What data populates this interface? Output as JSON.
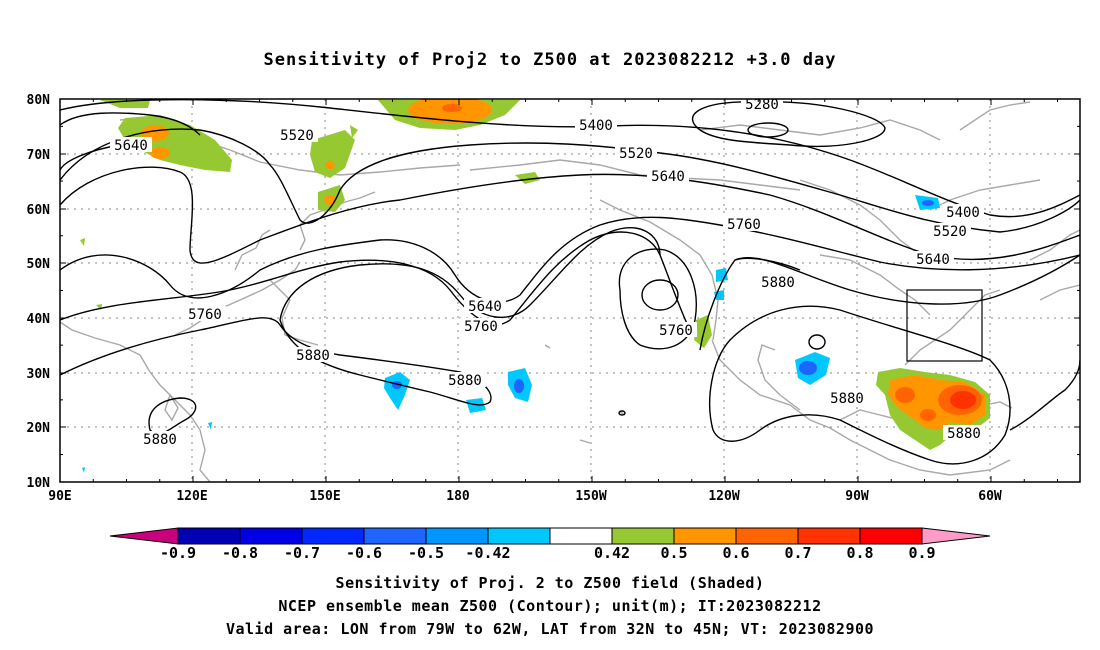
{
  "title": "Sensitivity of Proj2 to Z500 at 2023082212 +3.0 day",
  "lat_labels": [
    "80N",
    "70N",
    "60N",
    "50N",
    "40N",
    "30N",
    "20N",
    "10N"
  ],
  "lon_labels": [
    "90E",
    "120E",
    "150E",
    "180",
    "150W",
    "120W",
    "90W",
    "60W"
  ],
  "contours": [
    {
      "label": "5280"
    },
    {
      "label": "5400"
    },
    {
      "label": "5400"
    },
    {
      "label": "5520"
    },
    {
      "label": "5520"
    },
    {
      "label": "5520"
    },
    {
      "label": "5640"
    },
    {
      "label": "5640"
    },
    {
      "label": "5640"
    },
    {
      "label": "5640"
    },
    {
      "label": "5760"
    },
    {
      "label": "5760"
    },
    {
      "label": "5760"
    },
    {
      "label": "5760"
    },
    {
      "label": "5880"
    },
    {
      "label": "5880"
    },
    {
      "label": "5880"
    },
    {
      "label": "5880"
    },
    {
      "label": "5880"
    },
    {
      "label": "5880"
    }
  ],
  "colorbar": {
    "labels": [
      "-0.9",
      "-0.8",
      "-0.7",
      "-0.6",
      "-0.5",
      "-0.42",
      "0.42",
      "0.5",
      "0.6",
      "0.7",
      "0.8",
      "0.9"
    ],
    "colors": [
      "#c8007c",
      "#0000b4",
      "#0000e6",
      "#0028ff",
      "#1e64ff",
      "#0096ff",
      "#00c8ff",
      "#ffffff",
      "#96c832",
      "#ff9600",
      "#ff6400",
      "#ff3200",
      "#ff0000",
      "#ff9bc8"
    ]
  },
  "valid_box": {
    "lon_min": -79,
    "lon_max": -62,
    "lat_min": 32,
    "lat_max": 45
  },
  "captions": {
    "line1": "Sensitivity of Proj. 2 to Z500 field (Shaded)",
    "line2": "NCEP ensemble mean Z500 (Contour); unit(m); IT:2023082212",
    "line3": "Valid area: LON from 79W to 62W, LAT from 32N to 45N; VT: 2023082900"
  }
}
